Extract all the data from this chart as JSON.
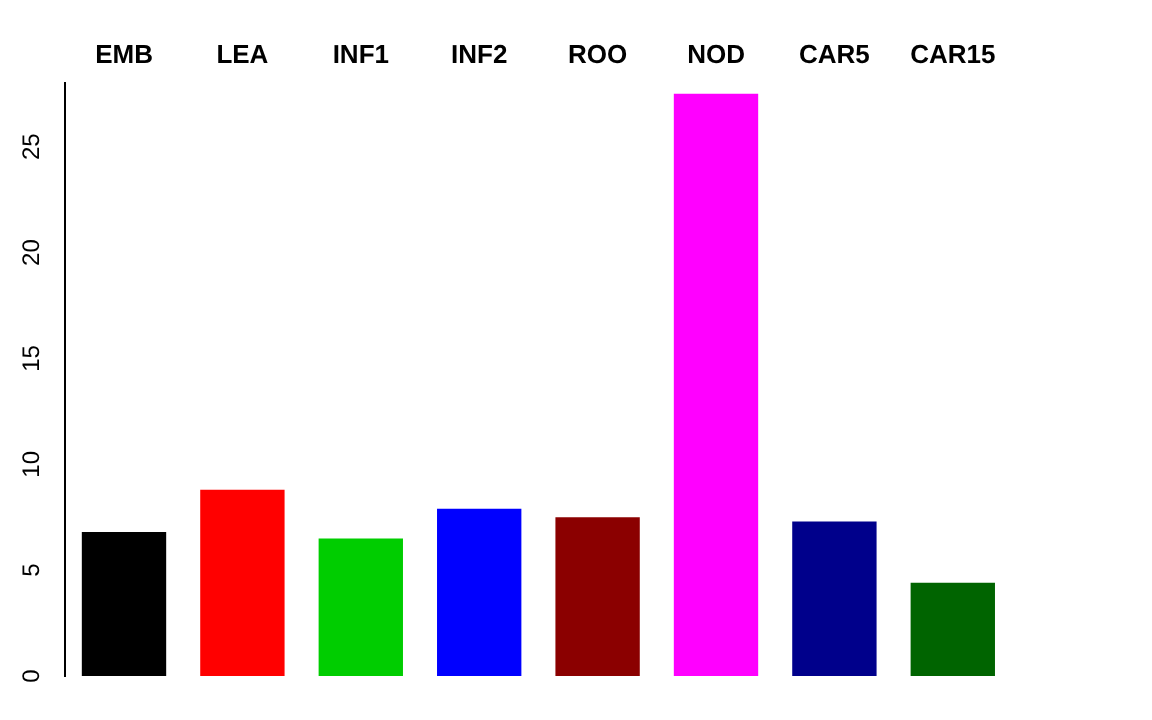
{
  "chart_data": {
    "type": "bar",
    "categories": [
      "EMB",
      "LEA",
      "INF1",
      "INF2",
      "ROO",
      "NOD",
      "CAR5",
      "CAR15"
    ],
    "values": [
      6.8,
      8.8,
      6.5,
      7.9,
      7.5,
      27.5,
      7.3,
      4.4
    ],
    "colors": [
      "#000000",
      "#ff0000",
      "#00cd00",
      "#0000ff",
      "#8b0000",
      "#ff00ff",
      "#00008b",
      "#006400"
    ],
    "ylim": [
      0,
      28
    ],
    "yticks": [
      0,
      5,
      10,
      15,
      20,
      25
    ],
    "grid": false,
    "legend": false
  }
}
